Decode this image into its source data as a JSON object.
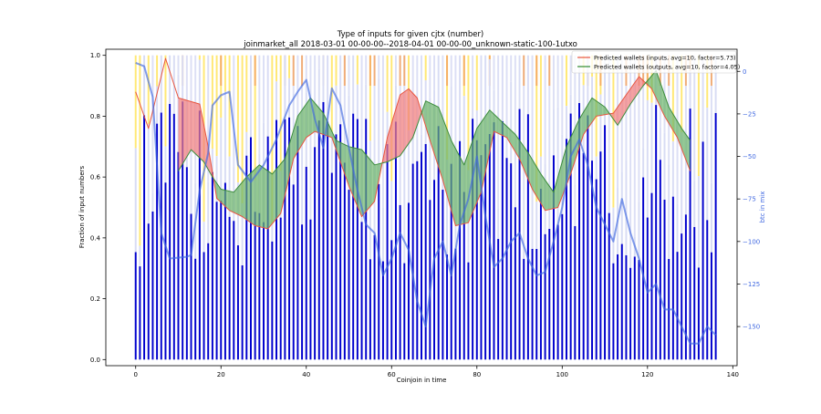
{
  "chart_data": {
    "type": "bar",
    "title": "Type of inputs for given cjtx (number)",
    "subtitle": "joinmarket_all 2018-03-01 00-00-00--2018-04-01 00-00-00_unknown-static-100-1utxo",
    "xlabel": "Coinjoin in time",
    "ylabel": "Fraction of input numbers",
    "y2label": "btc in mix",
    "xlim": [
      -7,
      141
    ],
    "ylim": [
      -0.02,
      1.02
    ],
    "y2lim": [
      -173,
      13
    ],
    "x_ticks": [
      0,
      20,
      40,
      60,
      80,
      100,
      120,
      140
    ],
    "y_ticks": [
      0.0,
      0.2,
      0.4,
      0.6,
      0.8,
      1.0
    ],
    "y2_ticks": [
      0,
      -25,
      -50,
      -75,
      -100,
      -125,
      -150
    ],
    "n_coinjoins": 137,
    "legend": {
      "placement": "top-right",
      "entries": [
        {
          "label": "Predicted wallets (inputs, avg=10, factor=5.73)",
          "color": "#e8553f"
        },
        {
          "label": "Predicted wallets (outputs, avg=10, factor=4.05)",
          "color": "#2e8b2e"
        }
      ]
    },
    "colors": {
      "bar_base": "#0000cd",
      "bar_light": "#d8dcf4",
      "bar_yellow": "#ffe566",
      "bar_orange": "#f4a460",
      "inputs_line": "#e8553f",
      "outputs_line": "#3c8c3c",
      "fill_inputs_higher": "#f08080",
      "fill_outputs_higher": "#6db46d",
      "btc_line": "#4169e1"
    },
    "anchors": {
      "inputs_wallets": [
        [
          0,
          0.88
        ],
        [
          3,
          0.76
        ],
        [
          7,
          0.99
        ],
        [
          10,
          0.86
        ],
        [
          15,
          0.84
        ],
        [
          17,
          0.7
        ],
        [
          19,
          0.53
        ],
        [
          22,
          0.49
        ],
        [
          25,
          0.47
        ],
        [
          28,
          0.44
        ],
        [
          31,
          0.43
        ],
        [
          34,
          0.48
        ],
        [
          37,
          0.66
        ],
        [
          40,
          0.73
        ],
        [
          42,
          0.75
        ],
        [
          46,
          0.73
        ],
        [
          50,
          0.57
        ],
        [
          53,
          0.47
        ],
        [
          56,
          0.52
        ],
        [
          59,
          0.73
        ],
        [
          62,
          0.87
        ],
        [
          64,
          0.89
        ],
        [
          66,
          0.86
        ],
        [
          69,
          0.72
        ],
        [
          72,
          0.59
        ],
        [
          75,
          0.44
        ],
        [
          78,
          0.45
        ],
        [
          81,
          0.55
        ],
        [
          84,
          0.75
        ],
        [
          87,
          0.73
        ],
        [
          90,
          0.66
        ],
        [
          93,
          0.56
        ],
        [
          96,
          0.49
        ],
        [
          99,
          0.5
        ],
        [
          102,
          0.61
        ],
        [
          105,
          0.74
        ],
        [
          108,
          0.8
        ],
        [
          112,
          0.81
        ],
        [
          115,
          0.87
        ],
        [
          118,
          0.93
        ],
        [
          121,
          0.89
        ],
        [
          124,
          0.8
        ],
        [
          127,
          0.73
        ],
        [
          130,
          0.62
        ]
      ],
      "outputs_wallets": [
        [
          10,
          0.62
        ],
        [
          13,
          0.69
        ],
        [
          16,
          0.65
        ],
        [
          18,
          0.6
        ],
        [
          20,
          0.56
        ],
        [
          23,
          0.55
        ],
        [
          26,
          0.6
        ],
        [
          29,
          0.64
        ],
        [
          32,
          0.61
        ],
        [
          35,
          0.66
        ],
        [
          38,
          0.8
        ],
        [
          41,
          0.86
        ],
        [
          44,
          0.81
        ],
        [
          47,
          0.72
        ],
        [
          50,
          0.7
        ],
        [
          53,
          0.69
        ],
        [
          56,
          0.64
        ],
        [
          59,
          0.65
        ],
        [
          62,
          0.67
        ],
        [
          65,
          0.73
        ],
        [
          68,
          0.85
        ],
        [
          71,
          0.83
        ],
        [
          74,
          0.72
        ],
        [
          77,
          0.64
        ],
        [
          80,
          0.76
        ],
        [
          83,
          0.82
        ],
        [
          86,
          0.78
        ],
        [
          89,
          0.74
        ],
        [
          92,
          0.68
        ],
        [
          95,
          0.61
        ],
        [
          98,
          0.55
        ],
        [
          101,
          0.7
        ],
        [
          104,
          0.79
        ],
        [
          107,
          0.86
        ],
        [
          110,
          0.83
        ],
        [
          113,
          0.77
        ],
        [
          116,
          0.84
        ],
        [
          119,
          0.9
        ],
        [
          122,
          0.95
        ],
        [
          125,
          0.83
        ],
        [
          128,
          0.76
        ],
        [
          130,
          0.72
        ]
      ],
      "btc_in_mix": [
        [
          0,
          5
        ],
        [
          2,
          3
        ],
        [
          4,
          -15
        ],
        [
          6,
          -95
        ],
        [
          8,
          -110
        ],
        [
          12,
          -109
        ],
        [
          13,
          -108
        ],
        [
          15,
          -70
        ],
        [
          17,
          -48
        ],
        [
          18,
          -20
        ],
        [
          20,
          -14
        ],
        [
          22,
          -12
        ],
        [
          24,
          -55
        ],
        [
          27,
          -65
        ],
        [
          30,
          -55
        ],
        [
          33,
          -40
        ],
        [
          36,
          -20
        ],
        [
          38,
          -12
        ],
        [
          40,
          -5
        ],
        [
          42,
          -28
        ],
        [
          44,
          -45
        ],
        [
          46,
          -10
        ],
        [
          48,
          -20
        ],
        [
          50,
          -45
        ],
        [
          52,
          -70
        ],
        [
          54,
          -90
        ],
        [
          56,
          -95
        ],
        [
          58,
          -120
        ],
        [
          60,
          -110
        ],
        [
          62,
          -95
        ],
        [
          64,
          -105
        ],
        [
          66,
          -135
        ],
        [
          68,
          -150
        ],
        [
          70,
          -110
        ],
        [
          72,
          -100
        ],
        [
          74,
          -120
        ],
        [
          76,
          -90
        ],
        [
          78,
          -75
        ],
        [
          80,
          -50
        ],
        [
          82,
          -85
        ],
        [
          84,
          -115
        ],
        [
          86,
          -110
        ],
        [
          88,
          -100
        ],
        [
          90,
          -95
        ],
        [
          92,
          -110
        ],
        [
          94,
          -120
        ],
        [
          96,
          -118
        ],
        [
          98,
          -100
        ],
        [
          100,
          -80
        ],
        [
          102,
          -50
        ],
        [
          104,
          -40
        ],
        [
          106,
          -55
        ],
        [
          108,
          -80
        ],
        [
          110,
          -90
        ],
        [
          112,
          -100
        ],
        [
          114,
          -75
        ],
        [
          116,
          -95
        ],
        [
          118,
          -110
        ],
        [
          120,
          -130
        ],
        [
          122,
          -125
        ],
        [
          124,
          -140
        ],
        [
          126,
          -140
        ],
        [
          128,
          -150
        ],
        [
          130,
          -160
        ],
        [
          132,
          -160
        ],
        [
          134,
          -150
        ],
        [
          136,
          -155
        ]
      ]
    }
  }
}
